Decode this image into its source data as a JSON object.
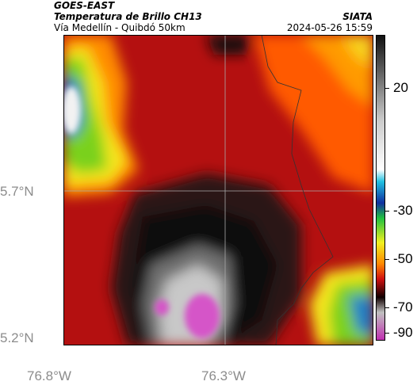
{
  "header": {
    "source": "GOES-EAST",
    "product": "Temperatura de Brillo CH13",
    "region": "Vía Medellín - Quibdó 50km",
    "org": "SIATA",
    "timestamp": "2024-05-26 15:59"
  },
  "axes": {
    "y_labels": [
      {
        "text": "5.7°N"
      },
      {
        "text": "5.2°N"
      }
    ],
    "x_labels": [
      {
        "text": "76.8°W"
      },
      {
        "text": "76.3°W"
      }
    ]
  },
  "colorbar": {
    "labels": [
      "20",
      "-30",
      "-50",
      "-70",
      "-90"
    ]
  }
}
